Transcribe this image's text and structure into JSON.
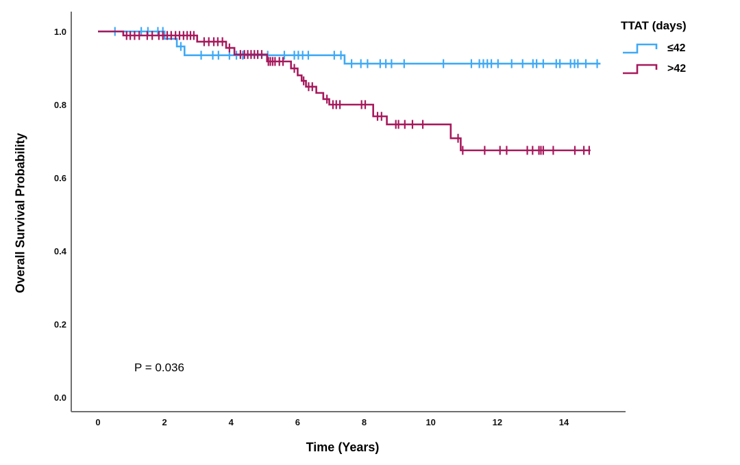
{
  "figure": {
    "y_axis_title": "Overall Survival Probability",
    "x_axis_title": "Time (Years)",
    "p_value_label": "P = 0.036",
    "background": "#ffffff",
    "axis_color": "#6e6e6e",
    "legend": {
      "title": "TTAT (days)",
      "items": [
        {
          "label": "≤42",
          "color": "#3fa9f5"
        },
        {
          "label": ">42",
          "color": "#a6195c"
        }
      ]
    }
  },
  "chart_data": {
    "type": "line",
    "subtype": "kaplan-meier-step-survival",
    "title": "",
    "xlabel": "Time (Years)",
    "ylabel": "Overall Survival Probability",
    "xlim": [
      -0.8,
      15.8
    ],
    "ylim": [
      -0.04,
      1.06
    ],
    "x_ticks": [
      0,
      2,
      4,
      6,
      8,
      10,
      12,
      14
    ],
    "y_ticks": [
      0.0,
      0.2,
      0.4,
      0.6,
      0.8,
      1.0
    ],
    "grid": false,
    "legend_position": "top-right",
    "annotations": [
      {
        "text": "P = 0.036",
        "x": 1.1,
        "y": 0.08
      }
    ],
    "series": [
      {
        "name": "≤42",
        "color": "#3fa9f5",
        "steps": [
          [
            0,
            1.0
          ],
          [
            2.0,
            0.98
          ],
          [
            2.37,
            0.959
          ],
          [
            2.6,
            0.935
          ],
          [
            7.41,
            0.912
          ],
          [
            15.1,
            0.912
          ]
        ],
        "censors": [
          [
            0.51,
            1.0
          ],
          [
            1.3,
            1.0
          ],
          [
            1.5,
            1.0
          ],
          [
            1.8,
            1.0
          ],
          [
            1.95,
            1.0
          ],
          [
            2.49,
            0.959
          ],
          [
            3.1,
            0.935
          ],
          [
            3.45,
            0.935
          ],
          [
            3.62,
            0.935
          ],
          [
            3.95,
            0.935
          ],
          [
            4.16,
            0.935
          ],
          [
            4.35,
            0.935
          ],
          [
            5.1,
            0.935
          ],
          [
            5.6,
            0.935
          ],
          [
            5.9,
            0.935
          ],
          [
            6.02,
            0.935
          ],
          [
            6.15,
            0.935
          ],
          [
            6.32,
            0.935
          ],
          [
            7.1,
            0.935
          ],
          [
            7.3,
            0.935
          ],
          [
            7.62,
            0.912
          ],
          [
            7.9,
            0.912
          ],
          [
            8.1,
            0.912
          ],
          [
            8.48,
            0.912
          ],
          [
            8.65,
            0.912
          ],
          [
            8.82,
            0.912
          ],
          [
            9.2,
            0.912
          ],
          [
            10.38,
            0.912
          ],
          [
            11.22,
            0.912
          ],
          [
            11.46,
            0.912
          ],
          [
            11.58,
            0.912
          ],
          [
            11.7,
            0.912
          ],
          [
            11.82,
            0.912
          ],
          [
            12.02,
            0.912
          ],
          [
            12.43,
            0.912
          ],
          [
            12.76,
            0.912
          ],
          [
            13.07,
            0.912
          ],
          [
            13.18,
            0.912
          ],
          [
            13.38,
            0.912
          ],
          [
            13.77,
            0.912
          ],
          [
            13.88,
            0.912
          ],
          [
            14.2,
            0.912
          ],
          [
            14.32,
            0.912
          ],
          [
            14.42,
            0.912
          ],
          [
            14.66,
            0.912
          ],
          [
            15.0,
            0.912
          ]
        ]
      },
      {
        "name": ">42",
        "color": "#a6195c",
        "steps": [
          [
            0,
            1.0
          ],
          [
            0.76,
            0.989
          ],
          [
            2.98,
            0.972
          ],
          [
            3.85,
            0.955
          ],
          [
            4.1,
            0.937
          ],
          [
            5.08,
            0.918
          ],
          [
            5.8,
            0.899
          ],
          [
            6.0,
            0.88
          ],
          [
            6.12,
            0.865
          ],
          [
            6.25,
            0.849
          ],
          [
            6.56,
            0.832
          ],
          [
            6.77,
            0.815
          ],
          [
            6.95,
            0.8
          ],
          [
            8.27,
            0.768
          ],
          [
            8.68,
            0.746
          ],
          [
            10.6,
            0.708
          ],
          [
            10.9,
            0.675
          ],
          [
            14.8,
            0.675
          ]
        ],
        "censors": [
          [
            0.86,
            0.989
          ],
          [
            0.97,
            0.989
          ],
          [
            1.1,
            0.989
          ],
          [
            1.24,
            0.989
          ],
          [
            1.48,
            0.989
          ],
          [
            1.63,
            0.989
          ],
          [
            1.83,
            0.989
          ],
          [
            1.95,
            0.989
          ],
          [
            2.08,
            0.989
          ],
          [
            2.2,
            0.989
          ],
          [
            2.33,
            0.989
          ],
          [
            2.45,
            0.989
          ],
          [
            2.57,
            0.989
          ],
          [
            2.68,
            0.989
          ],
          [
            2.78,
            0.989
          ],
          [
            2.88,
            0.989
          ],
          [
            3.19,
            0.972
          ],
          [
            3.33,
            0.972
          ],
          [
            3.48,
            0.972
          ],
          [
            3.6,
            0.972
          ],
          [
            3.74,
            0.972
          ],
          [
            3.95,
            0.955
          ],
          [
            4.28,
            0.937
          ],
          [
            4.4,
            0.937
          ],
          [
            4.5,
            0.937
          ],
          [
            4.6,
            0.937
          ],
          [
            4.7,
            0.937
          ],
          [
            4.8,
            0.937
          ],
          [
            4.92,
            0.937
          ],
          [
            5.12,
            0.918
          ],
          [
            5.18,
            0.918
          ],
          [
            5.25,
            0.918
          ],
          [
            5.32,
            0.918
          ],
          [
            5.45,
            0.918
          ],
          [
            5.56,
            0.918
          ],
          [
            5.9,
            0.899
          ],
          [
            6.18,
            0.865
          ],
          [
            6.33,
            0.849
          ],
          [
            6.44,
            0.849
          ],
          [
            6.88,
            0.815
          ],
          [
            7.06,
            0.8
          ],
          [
            7.16,
            0.8
          ],
          [
            7.27,
            0.8
          ],
          [
            7.92,
            0.8
          ],
          [
            8.03,
            0.8
          ],
          [
            8.4,
            0.768
          ],
          [
            8.52,
            0.768
          ],
          [
            8.95,
            0.746
          ],
          [
            9.03,
            0.746
          ],
          [
            9.22,
            0.746
          ],
          [
            9.45,
            0.746
          ],
          [
            9.76,
            0.746
          ],
          [
            10.82,
            0.708
          ],
          [
            10.96,
            0.675
          ],
          [
            11.62,
            0.675
          ],
          [
            12.08,
            0.675
          ],
          [
            12.28,
            0.675
          ],
          [
            12.9,
            0.675
          ],
          [
            13.06,
            0.675
          ],
          [
            13.25,
            0.675
          ],
          [
            13.31,
            0.675
          ],
          [
            13.38,
            0.675
          ],
          [
            13.68,
            0.675
          ],
          [
            14.33,
            0.675
          ],
          [
            14.6,
            0.675
          ],
          [
            14.76,
            0.675
          ]
        ]
      }
    ]
  }
}
